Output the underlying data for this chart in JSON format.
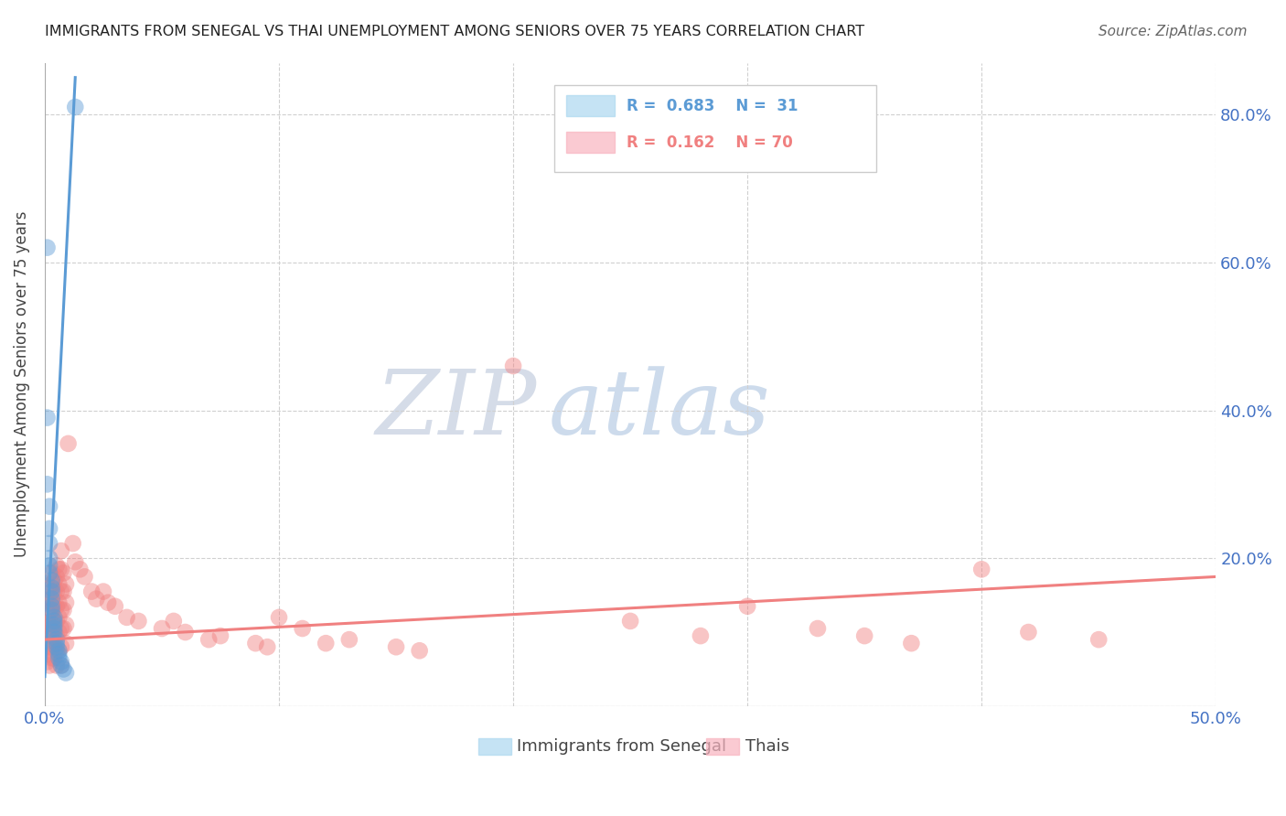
{
  "title": "IMMIGRANTS FROM SENEGAL VS THAI UNEMPLOYMENT AMONG SENIORS OVER 75 YEARS CORRELATION CHART",
  "source": "Source: ZipAtlas.com",
  "ylabel": "Unemployment Among Seniors over 75 years",
  "xlim": [
    0.0,
    0.5
  ],
  "ylim": [
    0.0,
    0.87
  ],
  "xtick_positions": [
    0.0,
    0.1,
    0.2,
    0.3,
    0.4,
    0.5
  ],
  "xticklabels": [
    "0.0%",
    "",
    "",
    "",
    "",
    "50.0%"
  ],
  "ytick_positions": [
    0.0,
    0.2,
    0.4,
    0.6,
    0.8
  ],
  "yticklabels_right": [
    "",
    "20.0%",
    "40.0%",
    "60.0%",
    "80.0%"
  ],
  "blue_color": "#5b9bd5",
  "pink_color": "#f08080",
  "blue_scatter": [
    [
      0.001,
      0.62
    ],
    [
      0.001,
      0.39
    ],
    [
      0.001,
      0.3
    ],
    [
      0.002,
      0.27
    ],
    [
      0.002,
      0.24
    ],
    [
      0.002,
      0.22
    ],
    [
      0.002,
      0.2
    ],
    [
      0.002,
      0.19
    ],
    [
      0.002,
      0.18
    ],
    [
      0.003,
      0.17
    ],
    [
      0.003,
      0.16
    ],
    [
      0.003,
      0.155
    ],
    [
      0.003,
      0.145
    ],
    [
      0.003,
      0.135
    ],
    [
      0.003,
      0.13
    ],
    [
      0.004,
      0.12
    ],
    [
      0.004,
      0.115
    ],
    [
      0.004,
      0.11
    ],
    [
      0.004,
      0.105
    ],
    [
      0.004,
      0.1
    ],
    [
      0.005,
      0.09
    ],
    [
      0.005,
      0.085
    ],
    [
      0.005,
      0.08
    ],
    [
      0.006,
      0.075
    ],
    [
      0.006,
      0.07
    ],
    [
      0.006,
      0.065
    ],
    [
      0.007,
      0.06
    ],
    [
      0.007,
      0.055
    ],
    [
      0.008,
      0.05
    ],
    [
      0.009,
      0.045
    ],
    [
      0.013,
      0.81
    ]
  ],
  "pink_scatter": [
    [
      0.001,
      0.14
    ],
    [
      0.001,
      0.11
    ],
    [
      0.001,
      0.08
    ],
    [
      0.001,
      0.06
    ],
    [
      0.002,
      0.16
    ],
    [
      0.002,
      0.145
    ],
    [
      0.002,
      0.13
    ],
    [
      0.002,
      0.115
    ],
    [
      0.002,
      0.1
    ],
    [
      0.002,
      0.085
    ],
    [
      0.002,
      0.07
    ],
    [
      0.002,
      0.055
    ],
    [
      0.003,
      0.18
    ],
    [
      0.003,
      0.165
    ],
    [
      0.003,
      0.14
    ],
    [
      0.003,
      0.125
    ],
    [
      0.003,
      0.11
    ],
    [
      0.003,
      0.095
    ],
    [
      0.003,
      0.08
    ],
    [
      0.003,
      0.065
    ],
    [
      0.004,
      0.17
    ],
    [
      0.004,
      0.155
    ],
    [
      0.004,
      0.135
    ],
    [
      0.004,
      0.115
    ],
    [
      0.004,
      0.1
    ],
    [
      0.004,
      0.08
    ],
    [
      0.004,
      0.065
    ],
    [
      0.005,
      0.19
    ],
    [
      0.005,
      0.175
    ],
    [
      0.005,
      0.155
    ],
    [
      0.005,
      0.135
    ],
    [
      0.005,
      0.115
    ],
    [
      0.005,
      0.095
    ],
    [
      0.005,
      0.075
    ],
    [
      0.005,
      0.055
    ],
    [
      0.006,
      0.185
    ],
    [
      0.006,
      0.165
    ],
    [
      0.006,
      0.14
    ],
    [
      0.006,
      0.12
    ],
    [
      0.006,
      0.1
    ],
    [
      0.006,
      0.075
    ],
    [
      0.007,
      0.21
    ],
    [
      0.007,
      0.185
    ],
    [
      0.007,
      0.155
    ],
    [
      0.007,
      0.13
    ],
    [
      0.007,
      0.105
    ],
    [
      0.007,
      0.08
    ],
    [
      0.007,
      0.055
    ],
    [
      0.008,
      0.18
    ],
    [
      0.008,
      0.155
    ],
    [
      0.008,
      0.13
    ],
    [
      0.008,
      0.105
    ],
    [
      0.009,
      0.165
    ],
    [
      0.009,
      0.14
    ],
    [
      0.009,
      0.11
    ],
    [
      0.009,
      0.085
    ],
    [
      0.01,
      0.355
    ],
    [
      0.012,
      0.22
    ],
    [
      0.013,
      0.195
    ],
    [
      0.015,
      0.185
    ],
    [
      0.017,
      0.175
    ],
    [
      0.02,
      0.155
    ],
    [
      0.022,
      0.145
    ],
    [
      0.025,
      0.155
    ],
    [
      0.027,
      0.14
    ],
    [
      0.03,
      0.135
    ],
    [
      0.035,
      0.12
    ],
    [
      0.04,
      0.115
    ],
    [
      0.05,
      0.105
    ],
    [
      0.055,
      0.115
    ],
    [
      0.06,
      0.1
    ],
    [
      0.07,
      0.09
    ],
    [
      0.075,
      0.095
    ],
    [
      0.09,
      0.085
    ],
    [
      0.095,
      0.08
    ],
    [
      0.1,
      0.12
    ],
    [
      0.11,
      0.105
    ],
    [
      0.12,
      0.085
    ],
    [
      0.13,
      0.09
    ],
    [
      0.15,
      0.08
    ],
    [
      0.16,
      0.075
    ],
    [
      0.2,
      0.46
    ],
    [
      0.25,
      0.115
    ],
    [
      0.28,
      0.095
    ],
    [
      0.3,
      0.135
    ],
    [
      0.33,
      0.105
    ],
    [
      0.35,
      0.095
    ],
    [
      0.37,
      0.085
    ],
    [
      0.4,
      0.185
    ],
    [
      0.42,
      0.1
    ],
    [
      0.45,
      0.09
    ]
  ],
  "blue_trendline_x": [
    0.0,
    0.013
  ],
  "blue_trendline_y": [
    0.04,
    0.85
  ],
  "pink_trendline_x": [
    0.0,
    0.5
  ],
  "pink_trendline_y": [
    0.09,
    0.175
  ],
  "watermark_zip": "ZIP",
  "watermark_atlas": "atlas",
  "zip_color": "#d0d8e8",
  "atlas_color": "#b8cce4",
  "axis_color": "#4472c4",
  "grid_color": "#d0d0d0",
  "background_color": "#ffffff"
}
